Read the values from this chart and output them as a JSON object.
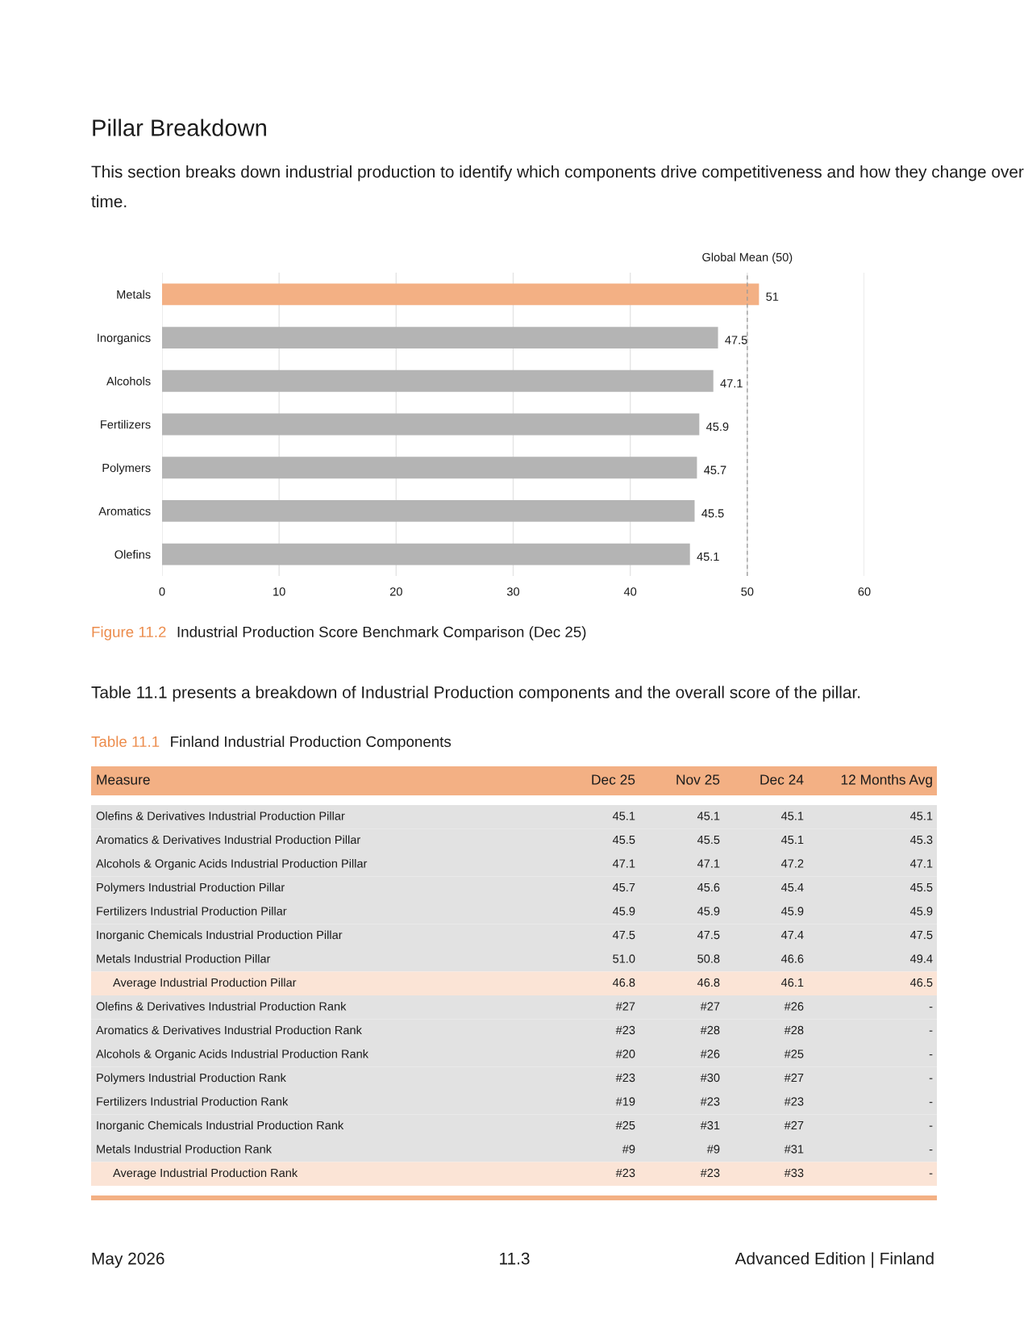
{
  "chart_data": [
    {
      "type": "bar",
      "orientation": "horizontal",
      "title": "Pillar Breakdown",
      "subtitle": "This section breaks down industrial production to identify which components drive competitiveness and how they change over time.",
      "categories": [
        "Metals",
        "Inorganics",
        "Alcohols",
        "Fertilizers",
        "Polymers",
        "Aromatics",
        "Olefins"
      ],
      "values": [
        51,
        47.5,
        47.1,
        45.9,
        45.7,
        45.5,
        45.1
      ],
      "colors": [
        "#f3b084",
        "#b4b4b4",
        "#b4b4b4",
        "#b4b4b4",
        "#b4b4b4",
        "#b4b4b4",
        "#b4b4b4"
      ],
      "data_labels": true,
      "xlim": [
        0,
        60
      ],
      "xticks": [
        0,
        10,
        20,
        30,
        40,
        50,
        60
      ],
      "grid": "x",
      "ref_lines": [
        {
          "axis": "x",
          "value": 50,
          "label": "Global Mean (50)",
          "color": "#9a9a9a",
          "line_style": "dashed"
        }
      ],
      "annotations": [
        "Figure 11.2",
        "Industrial Production Score Benchmark Comparison (Dec 25)"
      ]
    },
    {
      "type": "other",
      "title": "Finland Industrial Production Components",
      "subtitle": "Table 11.1 presents a breakdown of Industrial Production components and the overall score of the pillar.",
      "categories": [
        "Measure",
        "Dec 25",
        "Nov 25",
        "Dec 24",
        "12 Months Avg"
      ],
      "y_categories": [
        "Olefins & Derivatives Industrial Production Pillar",
        "Aromatics & Derivatives Industrial Production Pillar",
        "Alcohols & Organic Acids Industrial Production Pillar",
        "Polymers Industrial Production Pillar",
        "Fertilizers Industrial Production Pillar",
        "Inorganic Chemicals Industrial Production Pillar",
        "Metals Industrial Production Pillar",
        "Average Industrial Production Pillar",
        "Olefins & Derivatives Industrial Production Rank",
        "Aromatics & Derivatives Industrial Production Rank",
        "Alcohols & Organic Acids Industrial Production Rank",
        "Polymers Industrial Production Rank",
        "Fertilizers Industrial Production Rank",
        "Inorganic Chemicals Industrial Production Rank",
        "Metals Industrial Production Rank",
        "Average Industrial Production Rank"
      ],
      "cell_labels": [
        [
          "45.1",
          "45.1",
          "45.1",
          "45.1"
        ],
        [
          "45.5",
          "45.5",
          "45.1",
          "45.3"
        ],
        [
          "47.1",
          "47.1",
          "47.2",
          "47.1"
        ],
        [
          "45.7",
          "45.6",
          "45.4",
          "45.5"
        ],
        [
          "45.9",
          "45.9",
          "45.9",
          "45.9"
        ],
        [
          "47.5",
          "47.5",
          "47.4",
          "47.5"
        ],
        [
          "51.0",
          "50.8",
          "46.6",
          "49.4"
        ],
        [
          "46.8",
          "46.8",
          "46.1",
          "46.5"
        ],
        [
          "#27",
          "#27",
          "#26",
          "-"
        ],
        [
          "#23",
          "#28",
          "#28",
          "-"
        ],
        [
          "#20",
          "#26",
          "#25",
          "-"
        ],
        [
          "#23",
          "#30",
          "#27",
          "-"
        ],
        [
          "#19",
          "#23",
          "#23",
          "-"
        ],
        [
          "#25",
          "#31",
          "#27",
          "-"
        ],
        [
          "#9",
          "#9",
          "#31",
          "-"
        ],
        [
          "#23",
          "#23",
          "#33",
          "-"
        ]
      ],
      "colors": [
        "#f3b084",
        "#e2e2e2",
        "#e2e2e2",
        "#e2e2e2",
        "#e2e2e2",
        "#e2e2e2",
        "#e2e2e2",
        "#e2e2e2",
        "#fbe4d6",
        "#e2e2e2",
        "#e2e2e2",
        "#e2e2e2",
        "#e2e2e2",
        "#e2e2e2",
        "#e2e2e2",
        "#e2e2e2",
        "#fbe4d6"
      ],
      "annotations": [
        "Table 11.1",
        "May 2026",
        "11.3",
        "Advanced Edition | Finland"
      ]
    }
  ]
}
